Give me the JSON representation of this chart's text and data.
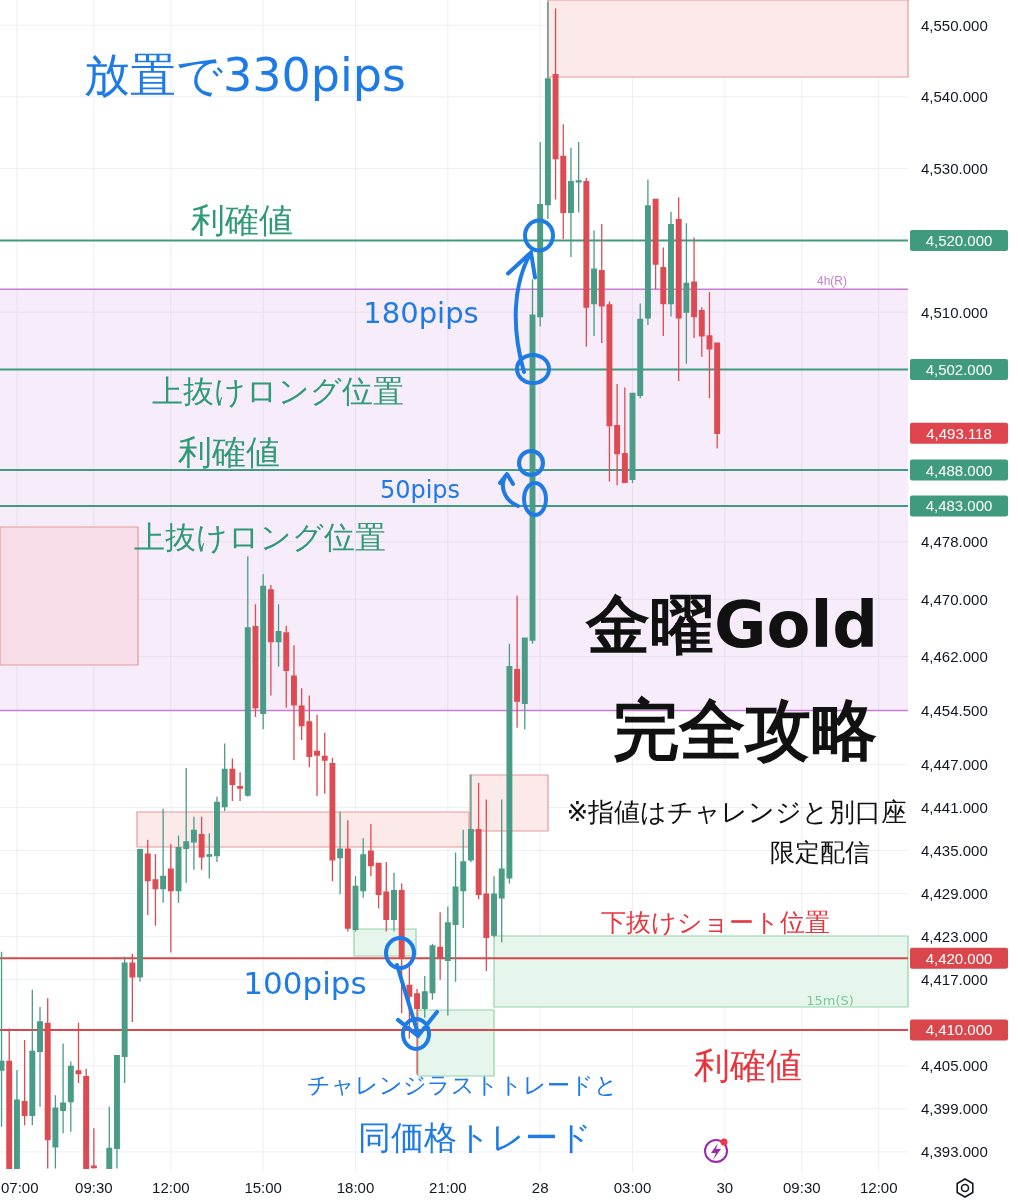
{
  "chart_data": {
    "type": "candlestick",
    "categories": [
      null,
      null,
      "07:00",
      null,
      null,
      null,
      null,
      null,
      null,
      null,
      null,
      null,
      "09:30",
      null,
      null,
      null,
      null,
      null,
      null,
      null,
      null,
      null,
      "12:00",
      null,
      null,
      null,
      null,
      null,
      null,
      null,
      null,
      null,
      null,
      null,
      "15:00",
      null,
      null,
      null,
      null,
      null,
      null,
      null,
      null,
      null,
      null,
      null,
      "18:00",
      null,
      null,
      null,
      null,
      null,
      null,
      null,
      null,
      null,
      null,
      null,
      "21:00",
      null,
      null,
      null,
      null,
      null,
      null,
      null,
      null,
      null,
      null,
      null,
      "28",
      null,
      null,
      null,
      null,
      null,
      null,
      null,
      null,
      null,
      null,
      null,
      "03:00",
      null,
      null,
      null,
      null,
      null,
      null,
      null,
      null,
      null,
      null,
      null,
      "30",
      null,
      null,
      null,
      null,
      null,
      null,
      null,
      null,
      null,
      "09:30",
      null,
      null,
      null,
      null,
      null,
      null,
      null,
      null,
      null,
      "12:00",
      null,
      null,
      null
    ],
    "ohlc": [
      [
        4404.4,
        4420.9,
        4396.5,
        4405.6
      ],
      [
        4405.6,
        4410.2,
        4390.7,
        4390.7
      ],
      [
        4390.7,
        4404.4,
        4390.7,
        4400.2
      ],
      [
        4400.0,
        4408.6,
        4396.7,
        4398.1
      ],
      [
        4398.1,
        4415.6,
        4396.7,
        4407.0
      ],
      [
        4407.0,
        4413.2,
        4399.3,
        4411.1
      ],
      [
        4410.9,
        4414.4,
        4390.7,
        4394.7
      ],
      [
        4393.7,
        4400.9,
        4390.7,
        4399.1
      ],
      [
        4398.8,
        4408.1,
        4395.6,
        4399.8
      ],
      [
        4400.0,
        4405.6,
        4395.8,
        4404.9
      ],
      [
        4404.3,
        4411.0,
        4402.6,
        4403.9
      ],
      [
        4403.5,
        4404.6,
        4390.7,
        4390.7
      ],
      [
        4391.0,
        4396.3,
        4390.7,
        4390.8
      ],
      null,
      [
        4390.7,
        4399.3,
        4390.7,
        4393.5
      ],
      [
        4393.5,
        4406.5,
        4390.7,
        4406.4
      ],
      [
        4406.3,
        4420.2,
        4402.6,
        4419.3
      ],
      [
        4419.3,
        4420.6,
        4411.1,
        4417.4
      ],
      [
        4417.4,
        4435.2,
        4416.7,
        4435.1
      ],
      [
        4434.5,
        4436.5,
        4426.0,
        4430.8
      ],
      [
        4430.9,
        4434.5,
        4424.5,
        4429.7
      ],
      [
        4429.7,
        4440.8,
        4427.7,
        4431.4
      ],
      [
        4432.4,
        4435.9,
        4420.8,
        4429.4
      ],
      [
        4429.4,
        4437.1,
        4427.7,
        4435.4
      ],
      [
        4435.3,
        4446.5,
        4430.5,
        4436.2
      ],
      [
        4436.2,
        4439.7,
        4432.3,
        4437.8
      ],
      [
        4437.2,
        4439.7,
        4432.3,
        4434.1
      ],
      [
        4434.2,
        4437.4,
        4431.1,
        4434.4
      ],
      [
        4434.3,
        4442.5,
        4433.4,
        4441.7
      ],
      [
        4441.1,
        4449.9,
        4440.5,
        4446.3
      ],
      [
        4446.3,
        4447.8,
        4441.9,
        4444.2
      ],
      [
        4443.9,
        4445.9,
        4441.9,
        4443.7
      ],
      [
        4442.7,
        4476.0,
        4442.5,
        4466.0
      ],
      [
        4466.2,
        4469.3,
        4453.6,
        4454.9
      ],
      [
        4454.1,
        4473.5,
        4451.9,
        4471.8
      ],
      [
        4471.3,
        4472.0,
        4456.6,
        4464.1
      ],
      [
        4464.1,
        4469.3,
        4460.6,
        4465.5
      ],
      [
        4465.3,
        4466.3,
        4454.9,
        4460.1
      ],
      [
        4459.3,
        4463.6,
        4447.6,
        4455.3
      ],
      [
        4455.1,
        4457.6,
        4450.4,
        4452.4
      ],
      [
        4452.9,
        4456.6,
        4446.6,
        4448.1
      ],
      [
        4448.8,
        4453.9,
        4442.6,
        4448.3
      ],
      [
        4448.1,
        4451.4,
        4442.9,
        4447.6
      ],
      [
        4447.1,
        4447.9,
        4430.7,
        4433.7
      ],
      [
        4434.0,
        4440.4,
        4428.9,
        4435.2
      ],
      [
        4435.2,
        4439.2,
        4423.7,
        4424.2
      ],
      [
        4424.0,
        4431.4,
        4423.7,
        4430.0
      ],
      [
        4429.4,
        4436.7,
        4428.4,
        4434.4
      ],
      [
        4434.9,
        4438.7,
        4431.4,
        4432.9
      ],
      [
        4433.2,
        4433.2,
        4426.9,
        4428.9
      ],
      [
        4429.2,
        4433.4,
        4423.7,
        4425.4
      ],
      [
        4425.4,
        4431.9,
        4423.7,
        4429.4
      ],
      [
        4429.4,
        4430.4,
        4412.3,
        4420.0
      ],
      [
        4416.2,
        4419.2,
        4408.8,
        4414.7
      ],
      [
        4415.0,
        4415.7,
        4403.8,
        4413.0
      ],
      [
        4413.0,
        4417.5,
        4411.7,
        4415.3
      ],
      [
        4415.2,
        4422.0,
        4414.2,
        4421.7
      ],
      [
        4421.5,
        4426.4,
        4417.0,
        4420.1
      ],
      [
        4419.7,
        4427.2,
        4412.0,
        4424.9
      ],
      [
        4424.7,
        4434.7,
        4416.7,
        4429.9
      ],
      [
        4429.4,
        4437.9,
        4424.2,
        4433.4
      ],
      [
        4433.7,
        4445.6,
        4433.4,
        4437.9
      ],
      [
        4437.9,
        4444.4,
        4428.2,
        4428.9
      ],
      [
        4428.9,
        4442.1,
        4418.2,
        4422.9
      ],
      [
        4423.2,
        4431.4,
        4422.9,
        4428.9
      ],
      [
        4428.4,
        4442.1,
        4422.2,
        4432.4
      ],
      [
        4431.2,
        4463.8,
        4430.4,
        4460.6
      ],
      [
        4460.2,
        4470.5,
        4452.1,
        4455.8
      ],
      [
        4455.5,
        4464.6,
        4451.9,
        4464.6
      ],
      [
        4464.3,
        4514.6,
        4463.8,
        4509.6
      ],
      [
        4509.4,
        4533.7,
        4508.0,
        4525.0
      ],
      [
        4525.0,
        4553.3,
        4523.0,
        4542.5
      ],
      [
        4543.1,
        4552.3,
        4525.7,
        4531.4
      ],
      [
        4531.7,
        4536.2,
        4520.2,
        4523.9
      ],
      [
        4523.9,
        4532.9,
        4517.7,
        4528.2
      ],
      [
        4528.2,
        4533.7,
        4523.9,
        4528.3
      ],
      [
        4528.2,
        4528.7,
        4505.2,
        4510.7
      ],
      [
        4511.2,
        4521.4,
        4506.7,
        4516.0
      ],
      [
        4515.8,
        4522.3,
        4505.7,
        4510.9
      ],
      [
        4511.0,
        4511.5,
        4486.4,
        4494.2
      ],
      [
        4494.2,
        4500.0,
        4485.9,
        4490.3
      ],
      [
        4490.3,
        4499.5,
        4486.2,
        4486.3
      ],
      [
        4486.7,
        4498.7,
        4486.2,
        4498.7
      ],
      [
        4498.4,
        4511.2,
        4498.0,
        4509.0
      ],
      [
        4509.2,
        4528.5,
        4508.2,
        4524.8
      ],
      [
        4525.7,
        4525.8,
        4513.2,
        4516.7
      ],
      [
        4516.2,
        4519.0,
        4506.7,
        4511.2
      ],
      [
        4511.2,
        4524.0,
        4509.4,
        4522.2
      ],
      [
        4522.9,
        4526.0,
        4500.4,
        4509.2
      ],
      [
        4510.0,
        4522.4,
        4502.8,
        4514.0
      ],
      [
        4514.2,
        4520.4,
        4506.4,
        4509.4
      ],
      [
        4510.2,
        4510.7,
        4503.8,
        4506.7
      ],
      [
        4506.7,
        4512.8,
        4498.0,
        4504.9
      ],
      [
        4505.7,
        4505.7,
        4491.0,
        4493.118
      ],
      null,
      null,
      null,
      null,
      null,
      null,
      null,
      null,
      null,
      null,
      null,
      null,
      null,
      null,
      null,
      null,
      null,
      null,
      null,
      null,
      null,
      null,
      null,
      null
    ],
    "ylim": [
      4390.2,
      4553.5
    ],
    "yticks": [
      {
        "value": 4550,
        "label": "4,550.000"
      },
      {
        "value": 4540,
        "label": "4,540.000"
      },
      {
        "value": 4530,
        "label": "4,530.000"
      },
      {
        "value": 4510,
        "label": "4,510.000"
      },
      {
        "value": 4478,
        "label": "4,478.000"
      },
      {
        "value": 4470,
        "label": "4,470.000"
      },
      {
        "value": 4462,
        "label": "4,462.000"
      },
      {
        "value": 4454.5,
        "label": "4,454.500"
      },
      {
        "value": 4447,
        "label": "4,447.000"
      },
      {
        "value": 4441,
        "label": "4,441.000"
      },
      {
        "value": 4435,
        "label": "4,435.000"
      },
      {
        "value": 4429,
        "label": "4,429.000"
      },
      {
        "value": 4423,
        "label": "4,423.000"
      },
      {
        "value": 4417,
        "label": "4,417.000"
      },
      {
        "value": 4405,
        "label": "4,405.000"
      },
      {
        "value": 4399,
        "label": "4,399.000"
      },
      {
        "value": 4393,
        "label": "4,393.000"
      }
    ],
    "grid": true,
    "bands": [
      {
        "axis": "y",
        "from": 4454.5,
        "to": 4513.2,
        "label": "4h(R)",
        "color": "#c77dd6"
      }
    ],
    "ref_lines": [
      {
        "axis": "y",
        "value": 4520,
        "label": "4,520.000",
        "color": "#3f9a7e"
      },
      {
        "axis": "y",
        "value": 4502,
        "label": "4,502.000",
        "color": "#3f9a7e"
      },
      {
        "axis": "y",
        "value": 4488,
        "label": "4,488.000",
        "color": "#3f9a7e"
      },
      {
        "axis": "y",
        "value": 4483,
        "label": "4,483.000",
        "color": "#3f9a7e"
      },
      {
        "axis": "y",
        "value": 4420,
        "label": "4,420.000",
        "color": "#d9464c"
      },
      {
        "axis": "y",
        "value": 4410,
        "label": "4,410.000",
        "color": "#d9464c"
      }
    ],
    "annotations": [
      "放置で330pips",
      "利確値",
      {
        "text": "180pips",
        "y": 4520
      },
      "上抜けロング位置",
      "利確値",
      "50pips",
      "上抜けロング位置",
      "金曜Gold",
      "完全攻略",
      "※指値はチャレンジと別口座",
      "限定配信",
      "下抜けショート位置",
      {
        "text": "100pips",
        "y": 4410
      },
      "利確値",
      "チャレンジラストトレードと",
      "同価格トレード",
      "15m(S)",
      "4,493.118"
    ]
  }
}
